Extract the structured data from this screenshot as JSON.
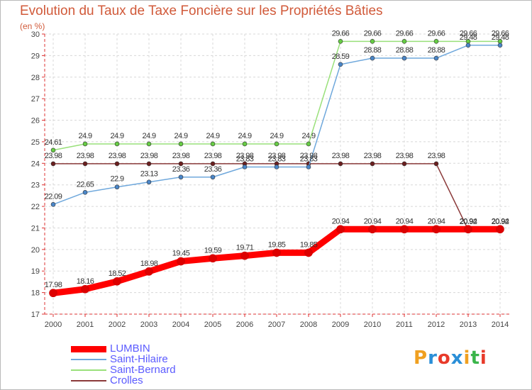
{
  "header": {
    "title": "Evolution du Taux de Taxe Foncière sur les Propriétés Bâties",
    "unit": "(en %)"
  },
  "logo": {
    "text": "Proxiti",
    "colors": [
      "#f0a020",
      "#2a8fd8",
      "#e83a2a",
      "#2a8fd8",
      "#f0a020",
      "#3ab54a",
      "#e83a2a"
    ]
  },
  "chart_data": {
    "type": "line",
    "x": [
      2000,
      2001,
      2002,
      2003,
      2004,
      2005,
      2006,
      2007,
      2008,
      2009,
      2010,
      2011,
      2012,
      2013,
      2014
    ],
    "ylim": [
      17,
      30
    ],
    "yticks": [
      17,
      18,
      19,
      20,
      21,
      22,
      23,
      24,
      25,
      26,
      27,
      28,
      29,
      30
    ],
    "grid": true,
    "legend_position": "bottom-left",
    "series": [
      {
        "name": "LUMBIN",
        "color": "#ff0000",
        "width": 9,
        "marker_color": "#dd0000",
        "values": [
          17.98,
          18.16,
          18.52,
          18.98,
          19.45,
          19.59,
          19.71,
          19.85,
          19.85,
          20.94,
          20.94,
          20.94,
          20.94,
          20.94,
          20.94
        ],
        "labels": [
          "17.98",
          "18.16",
          "18.52",
          "18.98",
          "19.45",
          "19.59",
          "19.71",
          "19.85",
          "19.85",
          "20.94",
          "20.94",
          "20.94",
          "20.94",
          "20.94",
          "20.94"
        ]
      },
      {
        "name": "Saint-Hilaire",
        "color": "#6fa8dc",
        "width": 1.5,
        "marker_color": "#4a86c8",
        "values": [
          22.09,
          22.65,
          22.9,
          23.13,
          23.36,
          23.36,
          23.83,
          23.83,
          23.83,
          28.59,
          28.88,
          28.88,
          28.88,
          29.48,
          29.48
        ],
        "labels": [
          "22.09",
          "22.65",
          "22.9",
          "23.13",
          "23.36",
          "23.36",
          "23.83",
          "23.83",
          "23.83",
          "28.59",
          "28.88",
          "28.88",
          "28.88",
          "29.48",
          "29.48"
        ]
      },
      {
        "name": "Saint-Bernard",
        "color": "#99e07a",
        "width": 1.5,
        "marker_color": "#66cc44",
        "values": [
          24.61,
          24.9,
          24.9,
          24.9,
          24.9,
          24.9,
          24.9,
          24.9,
          24.9,
          29.66,
          29.66,
          29.66,
          29.66,
          29.66,
          29.66
        ],
        "labels": [
          "24.61",
          "24.9",
          "24.9",
          "24.9",
          "24.9",
          "24.9",
          "24.9",
          "24.9",
          "24.9",
          "29.66",
          "29.66",
          "29.66",
          "29.66",
          "29.66",
          "29.66"
        ]
      },
      {
        "name": "Crolles",
        "color": "#8b3a3a",
        "width": 1.5,
        "marker_color": "#6b1f1f",
        "values": [
          23.98,
          23.98,
          23.98,
          23.98,
          23.98,
          23.98,
          23.98,
          23.98,
          23.98,
          23.98,
          23.98,
          23.98,
          23.98,
          20.92,
          20.92
        ],
        "labels": [
          "23.98",
          "23.98",
          "23.98",
          "23.98",
          "23.98",
          "23.98",
          "23.98",
          "23.98",
          "23.98",
          "23.98",
          "23.98",
          "23.98",
          "23.98",
          "20.92",
          "20.92"
        ]
      }
    ]
  }
}
